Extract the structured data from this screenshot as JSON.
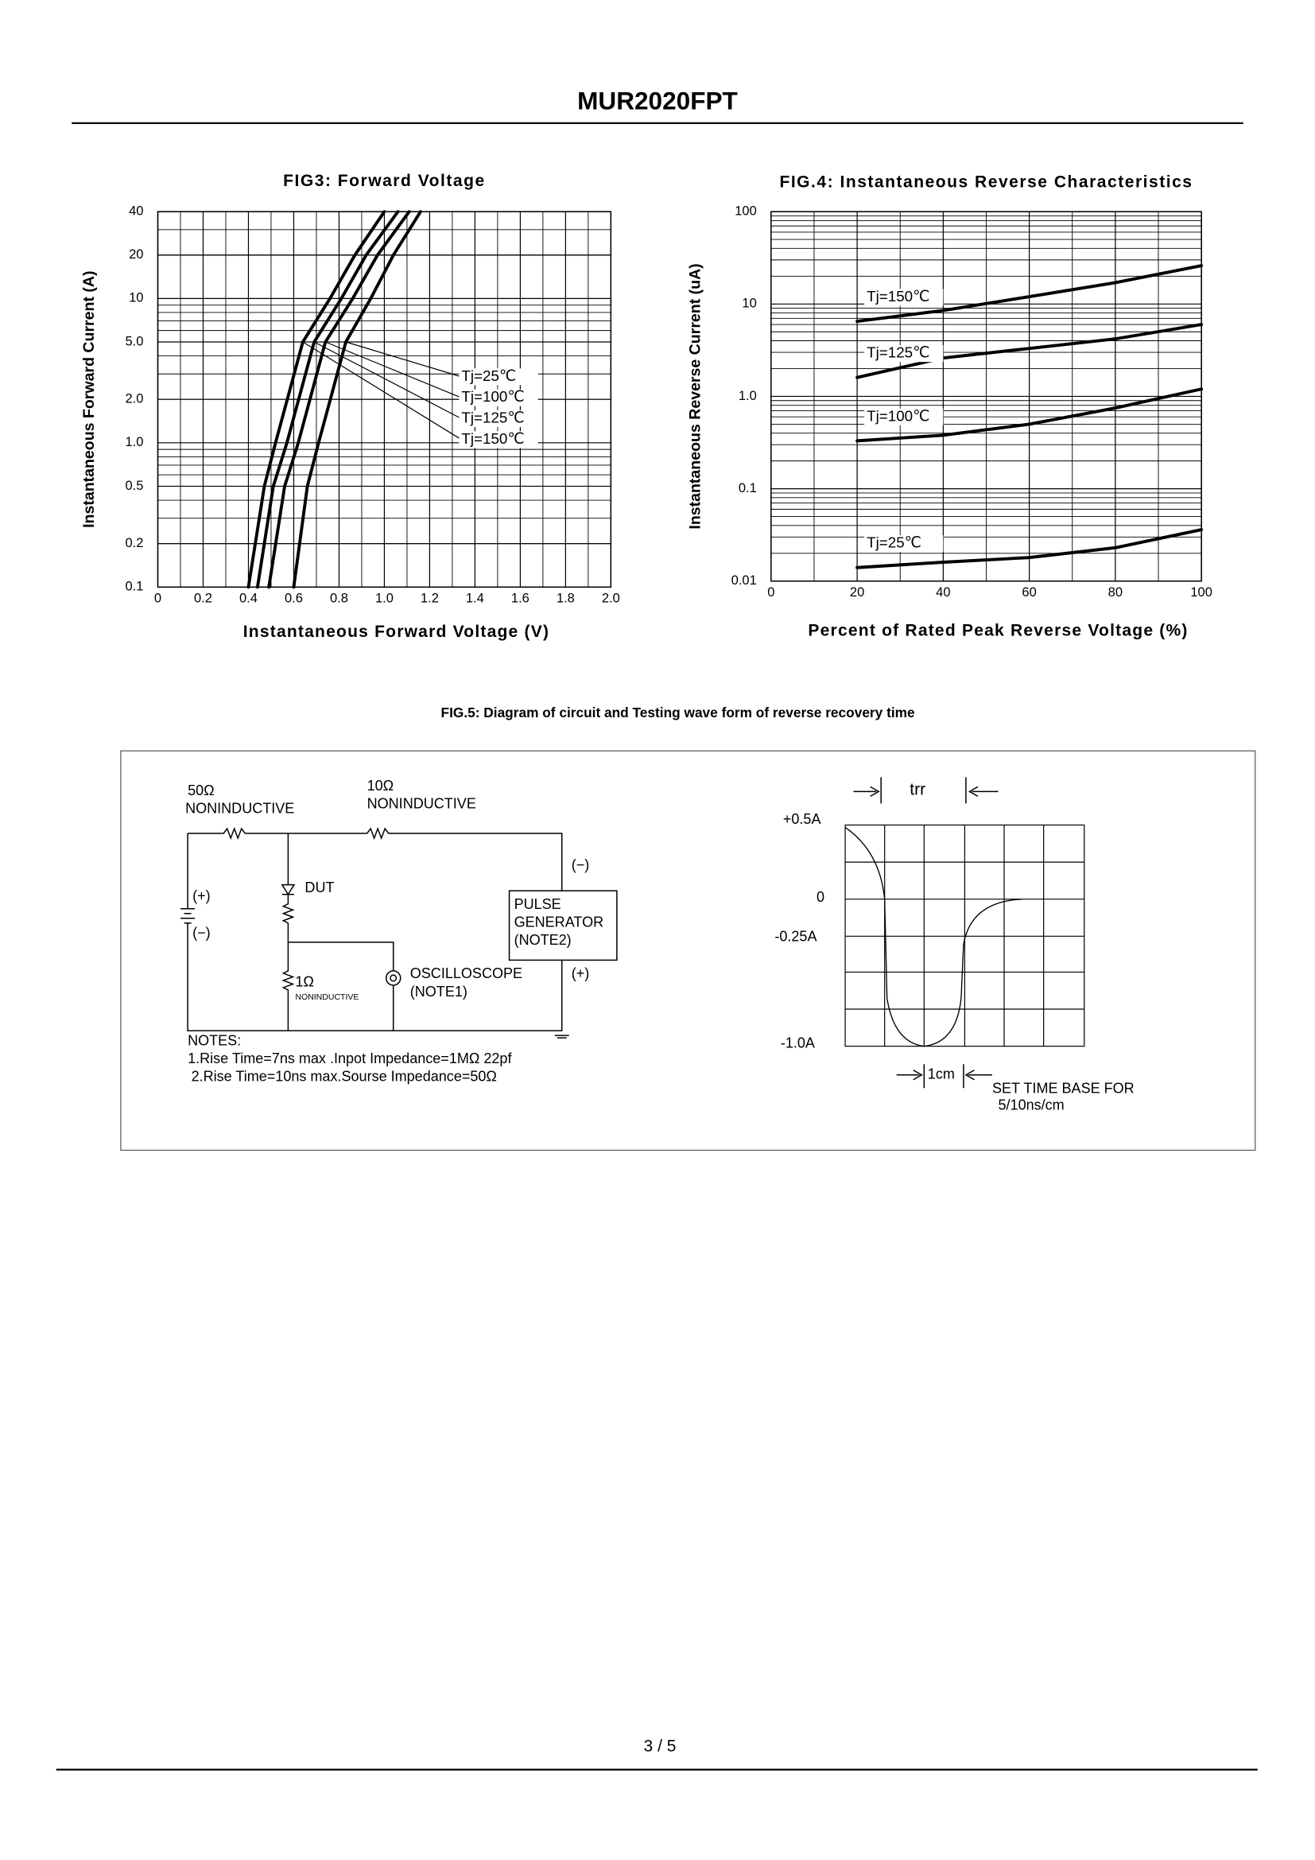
{
  "title": "MUR2020FPT",
  "footer": "3 / 5",
  "chart_data": [
    {
      "type": "line",
      "title": "FIG3: Forward Voltage",
      "xlabel": "Instantaneous Forward Voltage (V)",
      "ylabel": "Instantaneous Forward Current (A)",
      "xlim": [
        0,
        2
      ],
      "ylim": [
        0.1,
        40
      ],
      "ylog": true,
      "grid": true,
      "legend": "center-right",
      "xticks": [
        0,
        0.2,
        0.4,
        0.6,
        0.8,
        {
          "value": 1,
          "label": "1.0"
        },
        1.2,
        1.4,
        1.6,
        1.8,
        {
          "value": 2,
          "label": "2.0"
        }
      ],
      "yticks": [
        0.1,
        0.2,
        0.5,
        {
          "value": 1,
          "label": "1.0"
        },
        {
          "value": 2,
          "label": "2.0"
        },
        {
          "value": 5,
          "label": "5.0"
        },
        10,
        20,
        40
      ],
      "series": [
        {
          "name": "Tj=25℃",
          "color": "#000000",
          "x": [
            0.6,
            0.66,
            0.71,
            0.83,
            0.94,
            1.04,
            1.16
          ],
          "values": [
            0.1,
            0.5,
            1,
            5,
            10,
            20,
            40
          ]
        },
        {
          "name": "Tj=100℃",
          "color": "#000000",
          "x": [
            0.49,
            0.56,
            0.62,
            0.74,
            0.86,
            0.97,
            1.11
          ],
          "values": [
            0.1,
            0.5,
            1,
            5,
            10,
            20,
            40
          ]
        },
        {
          "name": "Tj=125℃",
          "color": "#000000",
          "x": [
            0.44,
            0.51,
            0.57,
            0.69,
            0.81,
            0.92,
            1.06
          ],
          "values": [
            0.1,
            0.5,
            1,
            5,
            10,
            20,
            40
          ]
        },
        {
          "name": "Tj=150℃",
          "color": "#000000",
          "x": [
            0.4,
            0.47,
            0.52,
            0.64,
            0.76,
            0.87,
            1.0
          ],
          "values": [
            0.1,
            0.5,
            1,
            5,
            10,
            20,
            40
          ]
        }
      ]
    },
    {
      "type": "line",
      "title": "FIG.4: Instantaneous Reverse Characteristics",
      "xlabel": "Percent of Rated Peak Reverse Voltage (%)",
      "ylabel": "Instantaneous Reverse Current (uA)",
      "xlim": [
        0,
        100
      ],
      "ylim": [
        0.01,
        100
      ],
      "ylog": true,
      "grid": true,
      "legend": "inline",
      "xticks": [
        0,
        20,
        40,
        60,
        80,
        100
      ],
      "yticks": [
        0.01,
        0.1,
        {
          "value": 1,
          "label": "1.0"
        },
        10,
        100
      ],
      "series": [
        {
          "name": "Tj=150℃",
          "color": "#000000",
          "x": [
            20,
            40,
            60,
            80,
            100
          ],
          "values": [
            6.5,
            8.5,
            12,
            17,
            26
          ]
        },
        {
          "name": "Tj=125℃",
          "color": "#000000",
          "x": [
            20,
            40,
            60,
            80,
            100
          ],
          "values": [
            1.6,
            2.6,
            3.3,
            4.2,
            6
          ]
        },
        {
          "name": "Tj=100℃",
          "color": "#000000",
          "x": [
            20,
            40,
            60,
            80,
            100
          ],
          "values": [
            0.33,
            0.38,
            0.5,
            0.75,
            1.2
          ]
        },
        {
          "name": "Tj=25℃",
          "color": "#000000",
          "x": [
            20,
            40,
            60,
            80,
            100
          ],
          "values": [
            0.014,
            0.016,
            0.018,
            0.023,
            0.036
          ]
        }
      ]
    }
  ],
  "fig5": {
    "title": "FIG.5: Diagram of circuit and Testing wave form of reverse recovery time",
    "circuit": {
      "r1": "50Ω",
      "r1_type": "NONINDUCTIVE",
      "r2": "10Ω",
      "r2_type": "NONINDUCTIVE",
      "source_plus": "(+)",
      "source_minus": "(−)",
      "dut": "DUT",
      "gen_minus": "(−)",
      "gen_plus": "(+)",
      "generator": [
        "PULSE",
        "GENERATOR",
        "(NOTE2)"
      ],
      "r3": "1Ω",
      "r3_type": "NONINDUCTIVE",
      "scope": [
        "OSCILLOSCOPE",
        "(NOTE1)"
      ],
      "notes": [
        "NOTES:",
        "1.Rise Time=7ns max .Inpot Impedance=1MΩ  22pf",
        "2.Rise Time=10ns max.Sourse Impedance=50Ω"
      ]
    },
    "waveform": {
      "levels": [
        "+0.5A",
        "0",
        "-0.25A",
        "-1.0A"
      ],
      "trr": "trr",
      "scale": "1cm",
      "time_base": [
        "SET TIME BASE FOR",
        "5/10ns/cm"
      ]
    }
  }
}
